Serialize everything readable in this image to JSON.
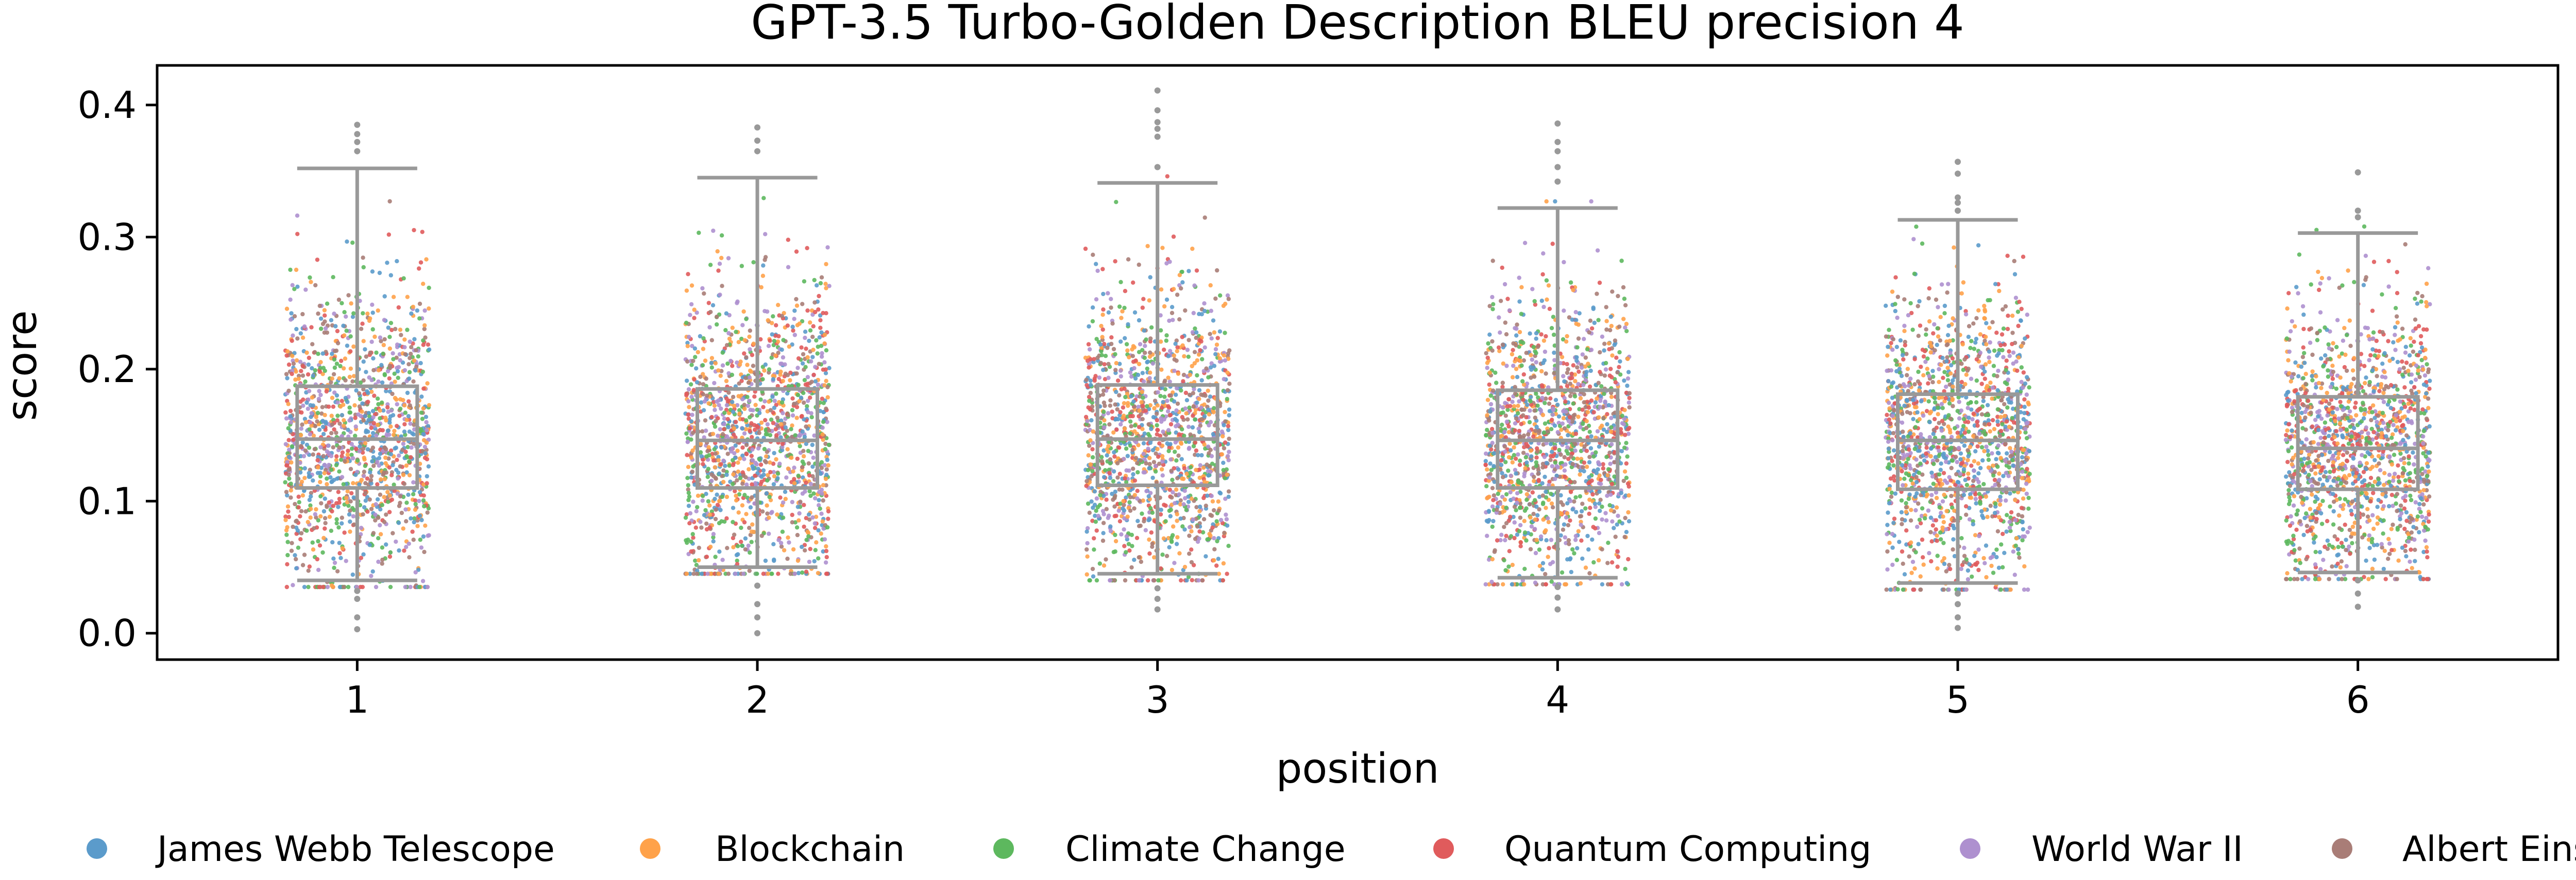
{
  "chart_data": {
    "type": "box",
    "overlay": "strip",
    "title": "GPT-3.5 Turbo-Golden Description BLEU precision 4",
    "xlabel": "position",
    "ylabel": "score",
    "ylim": [
      -0.02,
      0.43
    ],
    "yticks": [
      0.0,
      0.1,
      0.2,
      0.3,
      0.4
    ],
    "ytick_labels": [
      "0.0",
      "0.1",
      "0.2",
      "0.3",
      "0.4"
    ],
    "categories": [
      "1",
      "2",
      "3",
      "4",
      "5",
      "6"
    ],
    "box_color": "#999999",
    "grid": false,
    "legend_position": "bottom",
    "boxes": [
      {
        "position": "1",
        "whisker_low": 0.04,
        "q1": 0.11,
        "median": 0.147,
        "q3": 0.187,
        "whisker_high": 0.352
      },
      {
        "position": "2",
        "whisker_low": 0.05,
        "q1": 0.11,
        "median": 0.146,
        "q3": 0.185,
        "whisker_high": 0.345
      },
      {
        "position": "3",
        "whisker_low": 0.045,
        "q1": 0.112,
        "median": 0.147,
        "q3": 0.188,
        "whisker_high": 0.341
      },
      {
        "position": "4",
        "whisker_low": 0.042,
        "q1": 0.11,
        "median": 0.146,
        "q3": 0.184,
        "whisker_high": 0.322
      },
      {
        "position": "5",
        "whisker_low": 0.038,
        "q1": 0.109,
        "median": 0.146,
        "q3": 0.181,
        "whisker_high": 0.313
      },
      {
        "position": "6",
        "whisker_low": 0.046,
        "q1": 0.109,
        "median": 0.14,
        "q3": 0.179,
        "whisker_high": 0.303
      }
    ],
    "outliers": [
      {
        "position": "1",
        "values": [
          0.385,
          0.378,
          0.372,
          0.365,
          0.032,
          0.026,
          0.012,
          0.003
        ]
      },
      {
        "position": "2",
        "values": [
          0.383,
          0.373,
          0.365,
          0.036,
          0.022,
          0.012,
          0.0
        ]
      },
      {
        "position": "3",
        "values": [
          0.411,
          0.396,
          0.387,
          0.382,
          0.376,
          0.353,
          0.034,
          0.026,
          0.018
        ]
      },
      {
        "position": "4",
        "values": [
          0.386,
          0.372,
          0.365,
          0.353,
          0.342,
          0.035,
          0.027,
          0.018
        ]
      },
      {
        "position": "5",
        "values": [
          0.357,
          0.348,
          0.33,
          0.326,
          0.32,
          0.03,
          0.022,
          0.012,
          0.004
        ]
      },
      {
        "position": "6",
        "values": [
          0.349,
          0.32,
          0.315,
          0.04,
          0.03,
          0.02
        ]
      }
    ],
    "series": [
      {
        "name": "James Webb Telescope",
        "color": "#5B9BCB"
      },
      {
        "name": "Blockchain",
        "color": "#FFA24A"
      },
      {
        "name": "Climate Change",
        "color": "#5DB85E"
      },
      {
        "name": "Quantum Computing",
        "color": "#E05B5C"
      },
      {
        "name": "World War II",
        "color": "#AE90CF"
      },
      {
        "name": "Albert Einstein",
        "color": "#A97D77"
      }
    ]
  }
}
